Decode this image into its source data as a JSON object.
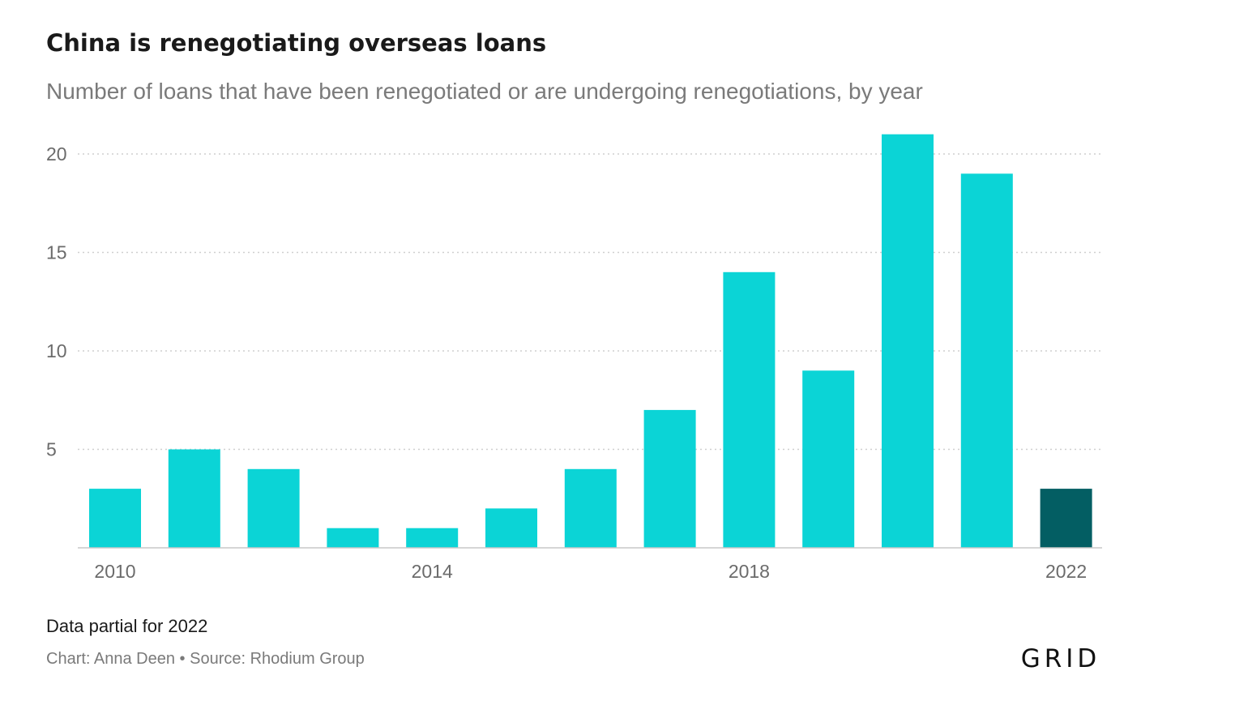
{
  "chart_data": {
    "type": "bar",
    "title": "China is renegotiating overseas loans",
    "subtitle": "Number of loans that have been renegotiated or are undergoing renegotiations, by year",
    "categories": [
      "2010",
      "2011",
      "2012",
      "2013",
      "2014",
      "2015",
      "2016",
      "2017",
      "2018",
      "2019",
      "2020",
      "2021",
      "2022"
    ],
    "values": [
      3,
      5,
      4,
      1,
      1,
      2,
      4,
      7,
      14,
      9,
      21,
      19,
      3
    ],
    "xlabel": "",
    "ylabel": "",
    "ylim": [
      0,
      21
    ],
    "y_ticks": [
      "5",
      "10",
      "15",
      "20"
    ],
    "x_tick_labels": [
      "2010",
      "2014",
      "2018",
      "2022"
    ],
    "grid": true,
    "legend": "none",
    "colors": {
      "bar": "#0bd4d6",
      "partial_bar": "#035e63"
    },
    "partial_category": "2022",
    "note": "Data partial for 2022"
  },
  "footer": {
    "credits": "Chart: Anna Deen • Source: Rhodium Group",
    "logo_text": "GRID"
  }
}
